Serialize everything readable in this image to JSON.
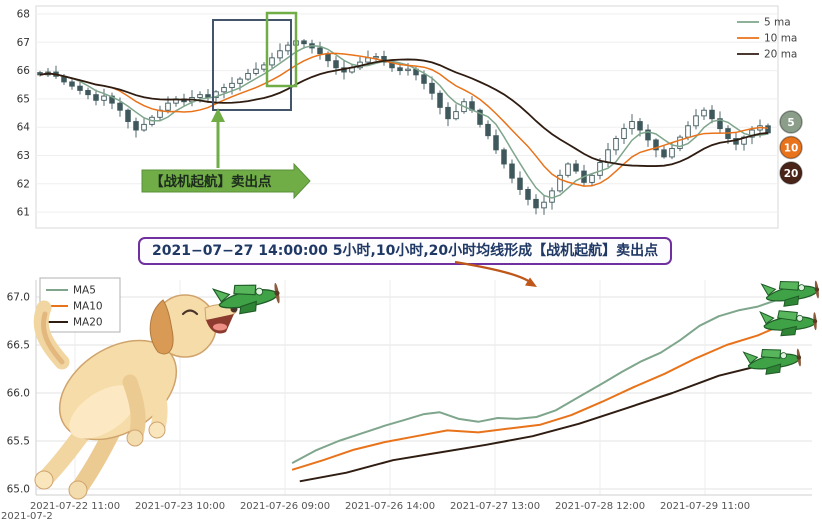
{
  "banner": {
    "text": "2021−07−27 14:00:00 5小时,10小时,20小时均线形成【战机起航】卖出点",
    "border_color": "#7030a0",
    "text_color": "#1f3864"
  },
  "corner_text": "2021-07-2",
  "annotation_arrow_color": "#c0571a",
  "chart_data": [
    {
      "type": "candlestick",
      "title": "",
      "legend": [
        "5 ma",
        "10 ma",
        "20 ma"
      ],
      "legend_position": "top-right",
      "ma_windows": [
        5,
        10,
        20
      ],
      "colors": {
        "ma5": "#7fa68c",
        "ma10": "#e8731a",
        "ma20": "#2f1d12",
        "candle": "#3f585c"
      },
      "y_ticks": [
        61,
        62,
        63,
        64,
        65,
        66,
        67,
        68
      ],
      "ylim": [
        60.5,
        68.2
      ],
      "grid": true,
      "closes": [
        65.85,
        65.95,
        65.8,
        65.6,
        65.45,
        65.3,
        65.15,
        64.95,
        65.1,
        64.85,
        64.6,
        64.2,
        63.9,
        64.1,
        64.35,
        64.6,
        64.85,
        65.0,
        64.9,
        65.05,
        65.15,
        65.05,
        65.25,
        65.4,
        65.55,
        65.7,
        65.9,
        66.05,
        66.2,
        66.45,
        66.7,
        66.9,
        67.05,
        66.95,
        66.8,
        66.6,
        66.35,
        66.1,
        65.95,
        66.1,
        66.3,
        66.45,
        66.5,
        66.3,
        66.1,
        66.0,
        66.05,
        65.85,
        65.55,
        65.2,
        64.7,
        64.3,
        64.55,
        64.9,
        64.6,
        64.1,
        63.7,
        63.2,
        62.7,
        62.2,
        61.8,
        61.45,
        61.15,
        61.35,
        61.75,
        62.3,
        62.7,
        62.45,
        62.05,
        62.3,
        62.75,
        63.2,
        63.6,
        63.95,
        64.2,
        63.9,
        63.55,
        63.2,
        62.95,
        63.25,
        63.65,
        64.05,
        64.4,
        64.6,
        64.3,
        63.95,
        63.6,
        63.4,
        63.65,
        63.9,
        64.05,
        63.8
      ],
      "badges": [
        {
          "label": "5",
          "color": "#8a9e8a"
        },
        {
          "label": "10",
          "color": "#e8731a"
        },
        {
          "label": "20",
          "color": "#4a2418"
        }
      ],
      "annotation": {
        "label": "【战机起航】卖出点",
        "color": "#70ad47"
      },
      "highlight": {
        "dark_box_color": "#44546a",
        "green_box_color": "#70ad47"
      }
    },
    {
      "type": "line",
      "title": "",
      "legend": [
        "MA5",
        "MA10",
        "MA20"
      ],
      "legend_position": "top-left",
      "colors": [
        "#7fa68c",
        "#e8731a",
        "#2f1d12"
      ],
      "y_ticks": [
        "67.0",
        "66.5",
        "66.0",
        "65.5",
        "65.0"
      ],
      "ylim": [
        64.9,
        67.25
      ],
      "grid": true,
      "x_labels": [
        "2021-07-22 11:00",
        "2021-07-23 10:00",
        "2021-07-26 09:00",
        "2021-07-26 14:00",
        "2021-07-27 13:00",
        "2021-07-28 12:00",
        "2021-07-29 11:00"
      ],
      "series": [
        {
          "name": "MA5",
          "points": [
            [
              0.33,
              65.27
            ],
            [
              0.36,
              65.4
            ],
            [
              0.39,
              65.5
            ],
            [
              0.42,
              65.58
            ],
            [
              0.45,
              65.66
            ],
            [
              0.475,
              65.72
            ],
            [
              0.5,
              65.78
            ],
            [
              0.52,
              65.8
            ],
            [
              0.545,
              65.73
            ],
            [
              0.57,
              65.7
            ],
            [
              0.595,
              65.74
            ],
            [
              0.62,
              65.73
            ],
            [
              0.645,
              65.75
            ],
            [
              0.67,
              65.82
            ],
            [
              0.7,
              65.96
            ],
            [
              0.73,
              66.1
            ],
            [
              0.755,
              66.22
            ],
            [
              0.78,
              66.33
            ],
            [
              0.805,
              66.42
            ],
            [
              0.83,
              66.55
            ],
            [
              0.855,
              66.7
            ],
            [
              0.88,
              66.8
            ],
            [
              0.905,
              66.86
            ],
            [
              0.93,
              66.9
            ],
            [
              0.955,
              66.97
            ],
            [
              0.985,
              67.05
            ]
          ]
        },
        {
          "name": "MA10",
          "points": [
            [
              0.33,
              65.2
            ],
            [
              0.37,
              65.3
            ],
            [
              0.41,
              65.41
            ],
            [
              0.45,
              65.49
            ],
            [
              0.49,
              65.55
            ],
            [
              0.53,
              65.61
            ],
            [
              0.57,
              65.59
            ],
            [
              0.61,
              65.63
            ],
            [
              0.65,
              65.67
            ],
            [
              0.69,
              65.77
            ],
            [
              0.73,
              65.91
            ],
            [
              0.77,
              66.06
            ],
            [
              0.81,
              66.2
            ],
            [
              0.85,
              66.36
            ],
            [
              0.89,
              66.5
            ],
            [
              0.93,
              66.6
            ],
            [
              0.965,
              66.72
            ],
            [
              0.985,
              66.8
            ]
          ]
        },
        {
          "name": "MA20",
          "points": [
            [
              0.34,
              65.08
            ],
            [
              0.4,
              65.17
            ],
            [
              0.46,
              65.3
            ],
            [
              0.52,
              65.38
            ],
            [
              0.58,
              65.46
            ],
            [
              0.64,
              65.55
            ],
            [
              0.7,
              65.68
            ],
            [
              0.76,
              65.84
            ],
            [
              0.82,
              66.0
            ],
            [
              0.88,
              66.18
            ],
            [
              0.94,
              66.3
            ],
            [
              0.985,
              66.38
            ]
          ]
        }
      ]
    }
  ]
}
